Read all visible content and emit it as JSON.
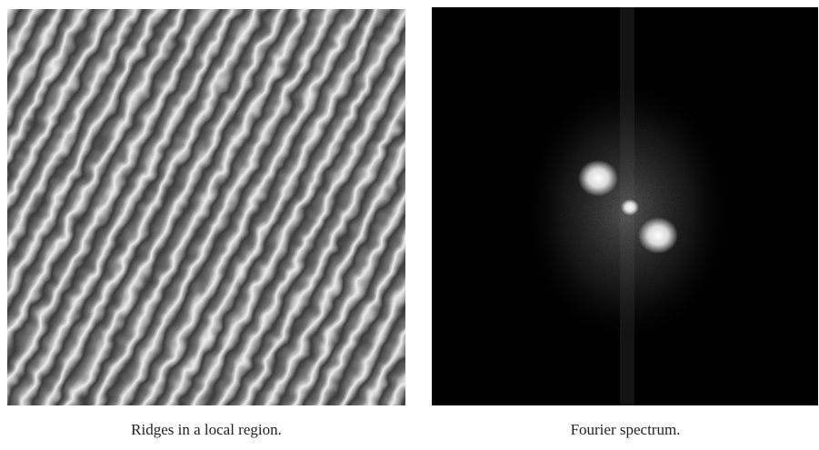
{
  "figure": {
    "panels": [
      {
        "caption": "Ridges in a local region."
      },
      {
        "caption": "Fourier spectrum."
      }
    ]
  }
}
